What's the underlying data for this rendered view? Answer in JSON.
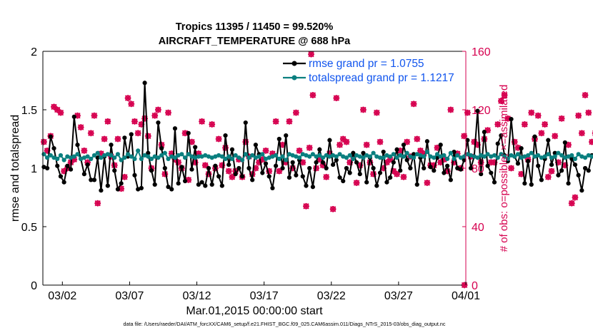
{
  "colors": {
    "rmse": "#000000",
    "totalspread": "#0a7f7f",
    "obs": "#d6004f",
    "legend_text": "#1155ee"
  },
  "chart_data": {
    "type": "line",
    "title": "Tropics 11395 / 11450 = 99.520%",
    "subtitle": "AIRCRAFT_TEMPERATURE @ 688 hPa",
    "xlabel": "Mar.01,2015 00:00:00 start",
    "ylabel": "rmse and totalspread",
    "ylabel_right": "# of obs: o=possible; ×=assimilated",
    "footer": "data file: /Users/raeder/DAI/ATM_forcXX/CAM6_setup/f.e21.FHIST_BGC.f09_025.CAM6assim.011/Diags_NTrS_2015-03/obs_diag_output.nc",
    "xlim": [
      0.55,
      32.0
    ],
    "ylim": [
      0,
      2
    ],
    "ylim_right": [
      0,
      160
    ],
    "x_ticks": [
      2,
      7,
      12,
      17,
      22,
      27,
      32
    ],
    "x_tick_labels": [
      "03/02",
      "03/07",
      "03/12",
      "03/17",
      "03/22",
      "03/27",
      "04/01"
    ],
    "y_ticks": [
      "0",
      "0.5",
      "1",
      "1.5",
      "2"
    ],
    "y_ticks_right": [
      "0",
      "40",
      "80",
      "120",
      "160"
    ],
    "legend": {
      "position": "top-right",
      "entries": [
        "rmse grand pr = 1.0755",
        "totalspread grand pr = 1.1217"
      ]
    },
    "x_start": 0.625,
    "x_step": 0.25,
    "series": [
      {
        "name": "rmse",
        "values": [
          1.01,
          1.0,
          1.27,
          1.17,
          1.02,
          0.93,
          0.88,
          1.02,
          0.99,
          1.44,
          1.2,
          1.08,
          0.95,
          1.03,
          0.9,
          0.9,
          1.09,
          0.81,
          1.1,
          0.85,
          1.2,
          0.98,
          0.82,
          0.87,
          1.26,
          1.1,
          1.29,
          0.94,
          0.82,
          0.83,
          1.73,
          1.13,
          0.98,
          0.86,
          1.39,
          1.17,
          1.0,
          0.84,
          0.82,
          1.34,
          0.87,
          1.01,
          0.89,
          1.3,
          0.99,
          1.18,
          0.86,
          0.88,
          0.85,
          1.0,
          0.86,
          1.02,
          0.93,
          0.85,
          1.28,
          1.03,
          1.16,
          0.95,
          1.0,
          0.93,
          1.39,
          1.0,
          0.9,
          1.2,
          1.12,
          0.96,
          1.04,
          0.93,
          0.83,
          1.02,
          1.25,
          1.0,
          1.28,
          0.92,
          1.05,
          0.94,
          1.07,
          0.93,
          0.85,
          1.0,
          0.84,
          1.05,
          1.16,
          1.05,
          1.0,
          1.24,
          1.03,
          1.07,
          0.92,
          0.89,
          1.0,
          0.96,
          1.13,
          1.05,
          0.95,
          1.13,
          0.88,
          1.09,
          1.0,
          0.85,
          0.96,
          1.14,
          0.88,
          0.92,
          1.05,
          1.16,
          0.98,
          1.2,
          1.07,
          1.0,
          1.12,
          0.86,
          1.09,
          1.0,
          1.23,
          1.01,
          0.98,
          1.09,
          1.2,
          0.96,
          1.02,
          0.9,
          1.14,
          1.0,
          0.99,
          1.07,
          1.24,
          1.0,
          1.1,
          1.49,
          0.95,
          1.31,
          1.02,
          0.96,
          0.88,
          1.21,
          1.28,
          1.11,
          1.06,
          1.42,
          1.1,
          1.04,
          1.17,
          0.87,
          1.06,
          0.86,
          1.27,
          1.02,
          0.9,
          1.08,
          1.24,
          1.03,
          1.13,
          0.94,
          0.98,
          1.22,
          0.87,
          1.08,
          1.03,
          0.94,
          0.81,
          1.0,
          0.98,
          1.11,
          1.1,
          1.07
        ]
      },
      {
        "name": "totalspread",
        "values": [
          1.12,
          1.09,
          1.11,
          1.09,
          1.08,
          1.11,
          1.07,
          1.1,
          1.09,
          1.1,
          1.12,
          1.08,
          1.09,
          1.1,
          1.08,
          1.11,
          1.13,
          1.09,
          1.11,
          1.12,
          1.11,
          1.09,
          1.12,
          1.07,
          1.09,
          1.12,
          1.1,
          1.08,
          1.15,
          1.08,
          1.11,
          1.1,
          1.08,
          1.1,
          1.09,
          1.11,
          1.13,
          1.08,
          1.1,
          1.09,
          1.11,
          1.12,
          1.09,
          1.12,
          1.1,
          1.09,
          1.1,
          1.1,
          1.11,
          1.1,
          1.09,
          1.1,
          1.11,
          1.1,
          1.08,
          1.1,
          1.08,
          1.11,
          1.09,
          1.07,
          1.12,
          1.09,
          1.11,
          1.09,
          1.1,
          1.12,
          1.08,
          1.09,
          1.1,
          1.11,
          1.08,
          1.1,
          1.07,
          1.12,
          1.11,
          1.1,
          1.09,
          1.12,
          1.11,
          1.1,
          1.12,
          1.1,
          1.11,
          1.09,
          1.11,
          1.1,
          1.11,
          1.1,
          1.12,
          1.1,
          1.09,
          1.11,
          1.08,
          1.11,
          1.1,
          1.09,
          1.11,
          1.1,
          1.13,
          1.1,
          1.09,
          1.09,
          1.11,
          1.1,
          1.12,
          1.09,
          1.11,
          1.1,
          1.13,
          1.1,
          1.09,
          1.12,
          1.11,
          1.1,
          1.14,
          1.1,
          1.09,
          1.12,
          1.1,
          1.11,
          1.08,
          1.13,
          1.08,
          1.11,
          1.09,
          1.1,
          1.12,
          1.11,
          1.1,
          1.09,
          1.11,
          1.1,
          1.12,
          1.1,
          1.11,
          1.09,
          1.12,
          1.1,
          1.08,
          1.11,
          1.1,
          1.12,
          1.09,
          1.1,
          1.11,
          1.13,
          1.1,
          1.11,
          1.09,
          1.1,
          1.12,
          1.09,
          1.1,
          1.13,
          1.11,
          1.09,
          1.1,
          1.11,
          1.08,
          1.12,
          1.1,
          1.09,
          1.11,
          1.1,
          1.1,
          1.1
        ]
      },
      {
        "name": "obs possible / assimilated",
        "values": [
          98,
          92,
          102,
          122,
          120,
          118,
          78,
          80,
          84,
          86,
          116,
          108,
          92,
          84,
          104,
          116,
          56,
          90,
          100,
          112,
          88,
          82,
          100,
          66,
          74,
          128,
          124,
          112,
          104,
          110,
          114,
          102,
          80,
          116,
          120,
          96,
          76,
          118,
          90,
          86,
          84,
          80,
          104,
          72,
          98,
          84,
          90,
          112,
          82,
          76,
          110,
          80,
          100,
          82,
          94,
          78,
          74,
          78,
          86,
          74,
          98,
          88,
          76,
          80,
          84,
          86,
          92,
          78,
          90,
          112,
          78,
          96,
          84,
          112,
          80,
          118,
          92,
          84,
          54,
          94,
          130,
          80,
          86,
          82,
          74,
          90,
          52,
          128,
          96,
          100,
          98,
          84,
          88,
          70,
          82,
          120,
          96,
          84,
          76,
          118,
          98,
          80,
          84,
          86,
          78,
          76,
          92,
          74,
          98,
          88,
          124,
          100,
          92,
          90,
          70,
          82,
          82,
          94,
          84,
          86,
          78,
          120,
          84,
          90,
          80,
          102,
          118,
          88,
          98,
          96,
          84,
          100,
          106,
          84,
          84,
          110,
          126,
          130,
          114,
          80,
          98,
          94,
          76,
          110,
          86,
          118,
          100,
          116,
          104,
          110,
          74,
          78,
          102,
          84,
          114,
          82,
          96,
          56,
          60,
          116,
          104,
          130,
          118,
          98,
          104,
          88
        ]
      }
    ],
    "obs_offscale": [
      {
        "x": 20.5,
        "y": 158
      },
      {
        "x": 31.9,
        "y": 0
      }
    ]
  }
}
